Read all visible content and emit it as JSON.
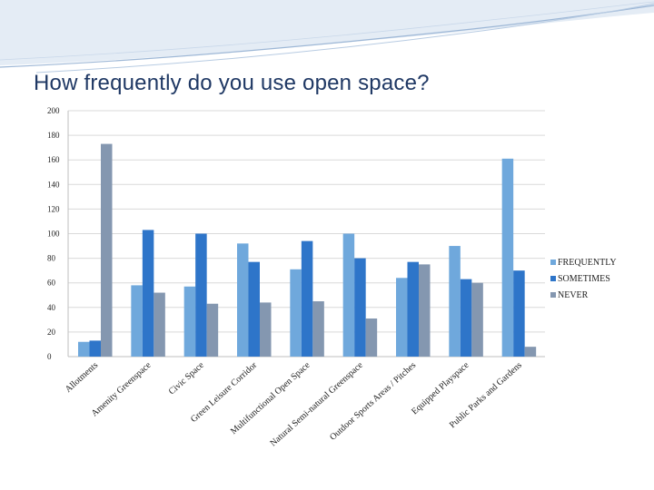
{
  "title": "How frequently do you use open space?",
  "colors": {
    "title": "#1f3864",
    "header_swoosh": "#9db7d6",
    "grid": "#d9d9d9"
  },
  "chart_data": {
    "type": "bar",
    "title": "",
    "xlabel": "",
    "ylabel": "",
    "ylim": [
      0,
      200
    ],
    "yticks": [
      0,
      20,
      40,
      60,
      80,
      100,
      120,
      140,
      160,
      180,
      200
    ],
    "grid": true,
    "legend_position": "right",
    "categories": [
      "Allotments",
      "Amenity Greenspace",
      "Civic Space",
      "Green Leisure Corridor",
      "Multifunctional Open Space",
      "Natural Semi-natural Greenspace",
      "Outdoor Sports Areas / Pitches",
      "Equipped Playspace",
      "Public Parks and Gardens"
    ],
    "series": [
      {
        "name": "FREQUENTLY",
        "color": "#6fa8dc",
        "values": [
          12,
          58,
          57,
          92,
          71,
          100,
          64,
          90,
          161
        ]
      },
      {
        "name": "SOMETIMES",
        "color": "#2e75c9",
        "values": [
          13,
          103,
          100,
          77,
          94,
          80,
          77,
          63,
          70
        ]
      },
      {
        "name": "NEVER",
        "color": "#8497b0",
        "values": [
          173,
          52,
          43,
          44,
          45,
          31,
          75,
          60,
          8
        ]
      }
    ]
  }
}
